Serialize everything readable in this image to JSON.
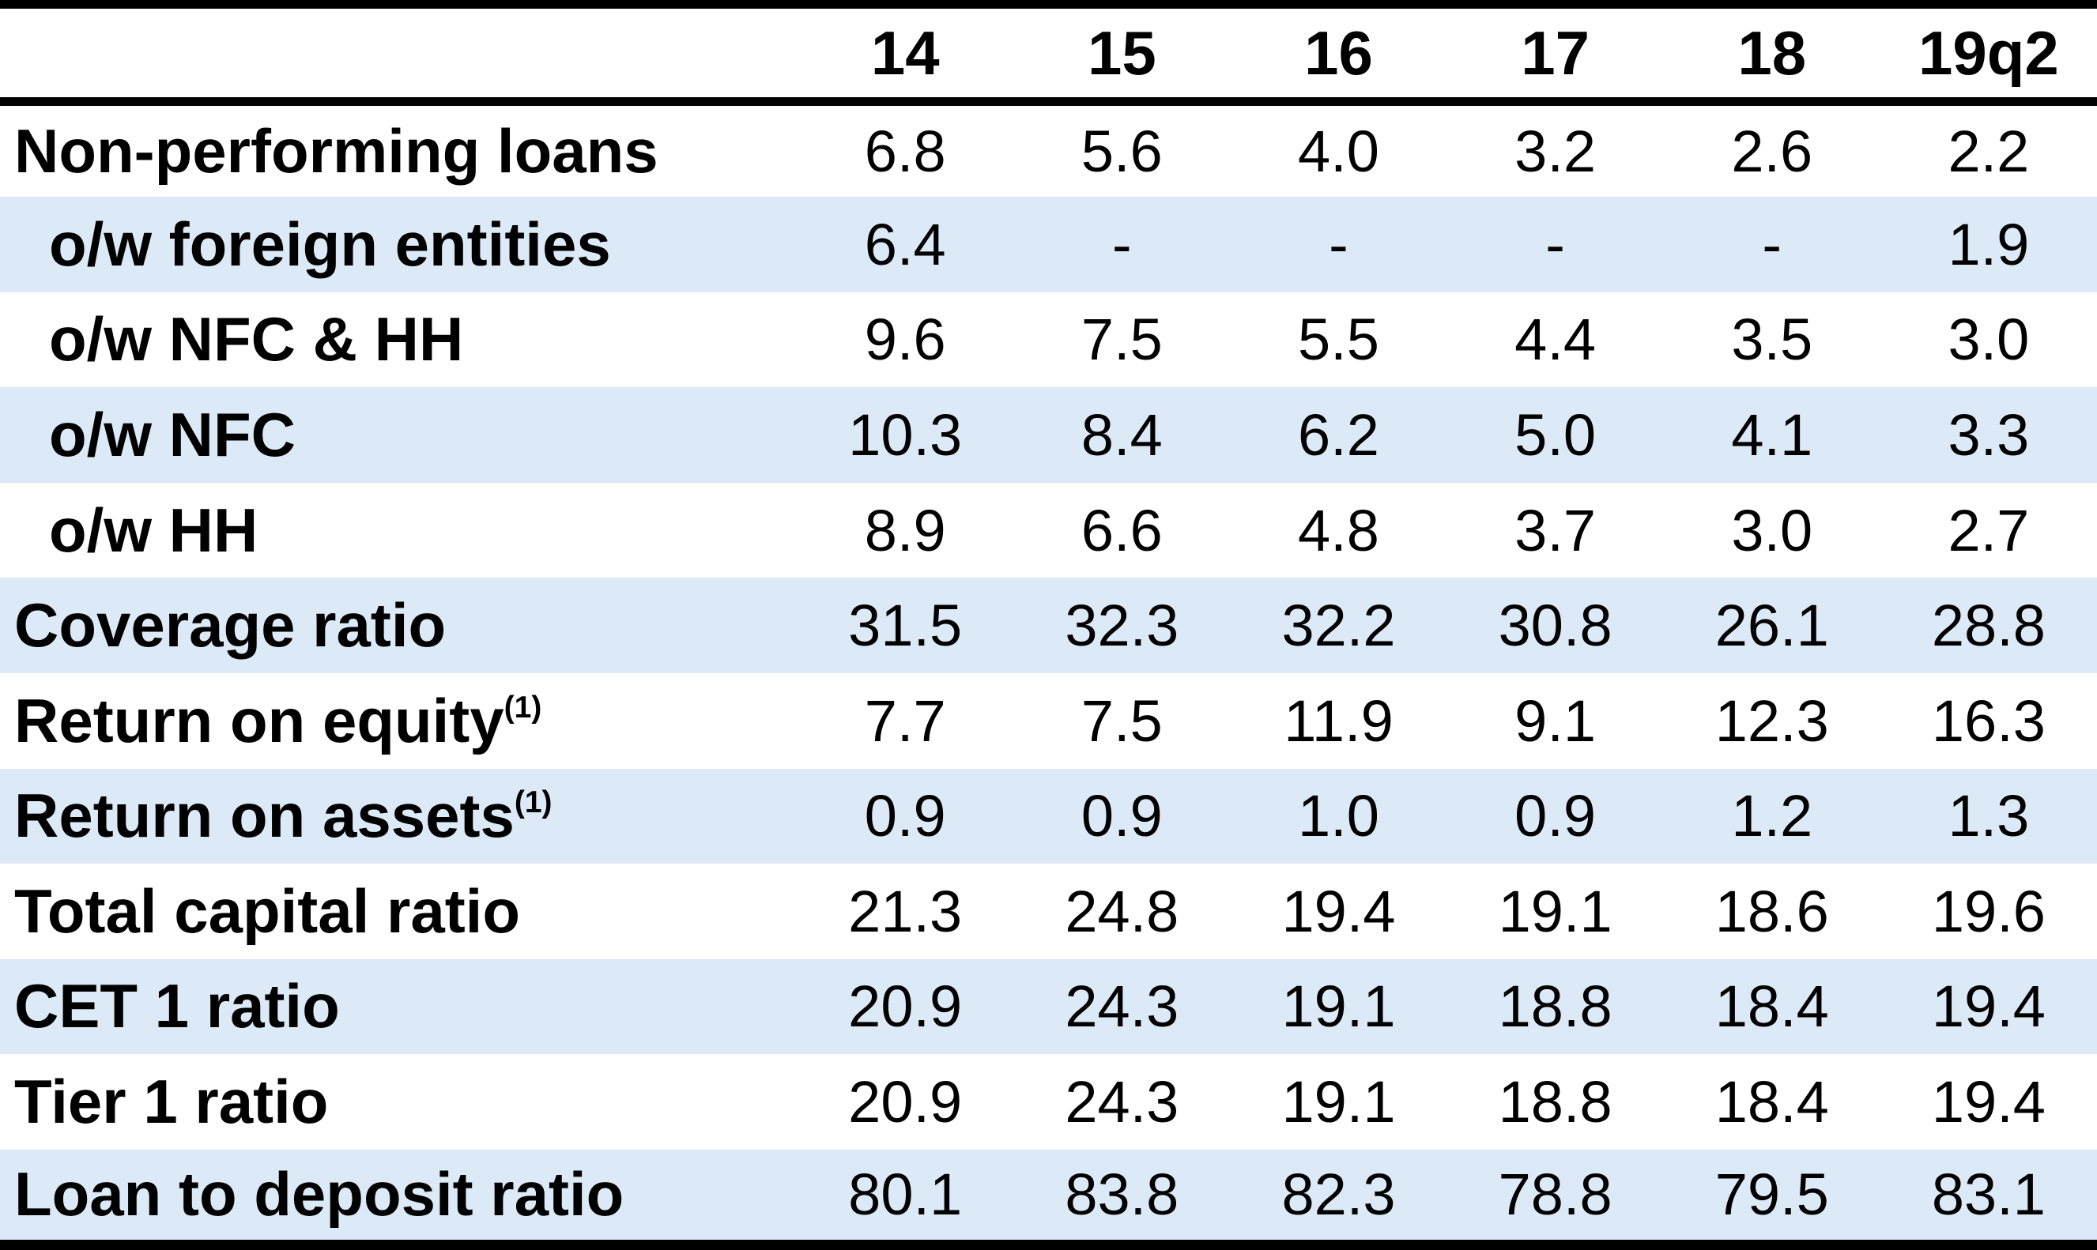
{
  "chart_data": {
    "type": "table",
    "title": "",
    "corner_label": "",
    "columns": [
      "14",
      "15",
      "16",
      "17",
      "18",
      "19q2"
    ],
    "rows": [
      {
        "label": "Non-performing loans",
        "superscript": "",
        "indented": false,
        "values": [
          "6.8",
          "5.6",
          "4.0",
          "3.2",
          "2.6",
          "2.2"
        ]
      },
      {
        "label": "o/w foreign entities",
        "superscript": "",
        "indented": true,
        "values": [
          "6.4",
          "-",
          "-",
          "-",
          "-",
          "1.9"
        ]
      },
      {
        "label": "o/w NFC & HH",
        "superscript": "",
        "indented": true,
        "values": [
          "9.6",
          "7.5",
          "5.5",
          "4.4",
          "3.5",
          "3.0"
        ]
      },
      {
        "label": "o/w NFC",
        "superscript": "",
        "indented": true,
        "values": [
          "10.3",
          "8.4",
          "6.2",
          "5.0",
          "4.1",
          "3.3"
        ]
      },
      {
        "label": "o/w HH",
        "superscript": "",
        "indented": true,
        "values": [
          "8.9",
          "6.6",
          "4.8",
          "3.7",
          "3.0",
          "2.7"
        ]
      },
      {
        "label": "Coverage ratio",
        "superscript": "",
        "indented": false,
        "values": [
          "31.5",
          "32.3",
          "32.2",
          "30.8",
          "26.1",
          "28.8"
        ]
      },
      {
        "label": "Return on equity",
        "superscript": "(1)",
        "indented": false,
        "values": [
          "7.7",
          "7.5",
          "11.9",
          "9.1",
          "12.3",
          "16.3"
        ]
      },
      {
        "label": "Return on assets",
        "superscript": "(1)",
        "indented": false,
        "values": [
          "0.9",
          "0.9",
          "1.0",
          "0.9",
          "1.2",
          "1.3"
        ]
      },
      {
        "label": "Total capital ratio",
        "superscript": "",
        "indented": false,
        "values": [
          "21.3",
          "24.8",
          "19.4",
          "19.1",
          "18.6",
          "19.6"
        ]
      },
      {
        "label": "CET 1 ratio",
        "superscript": "",
        "indented": false,
        "values": [
          "20.9",
          "24.3",
          "19.1",
          "18.8",
          "18.4",
          "19.4"
        ]
      },
      {
        "label": "Tier 1 ratio",
        "superscript": "",
        "indented": false,
        "values": [
          "20.9",
          "24.3",
          "19.1",
          "18.8",
          "18.4",
          "19.4"
        ]
      },
      {
        "label": "Loan to deposit ratio",
        "superscript": "",
        "indented": false,
        "values": [
          "80.1",
          "83.8",
          "82.3",
          "78.8",
          "79.5",
          "83.1"
        ]
      }
    ],
    "layout_hints": {
      "stripe_color": "#dce9f7",
      "text_color": "#000000",
      "border_color": "#000000",
      "background_color": "#ffffff",
      "striping": "rows alternate white/blue starting with white"
    }
  }
}
